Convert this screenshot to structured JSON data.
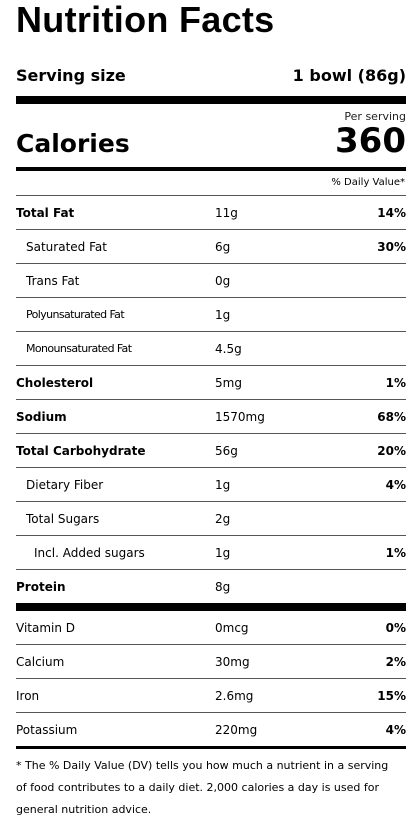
{
  "title": "Nutrition Facts",
  "serving": {
    "label": "Serving size",
    "value": "1 bowl (86g)"
  },
  "calories": {
    "per_serving": "Per serving",
    "label": "Calories",
    "value": "360"
  },
  "dv_header": "% Daily Value*",
  "nutrients": [
    {
      "name": "Total Fat",
      "amount": "11g",
      "dv": "14%"
    },
    {
      "name": "Saturated Fat",
      "amount": "6g",
      "dv": "30%"
    },
    {
      "name": "Trans Fat",
      "amount": "0g",
      "dv": ""
    },
    {
      "name": "Polyunsaturated Fat",
      "amount": "1g",
      "dv": ""
    },
    {
      "name": "Monounsaturated Fat",
      "amount": "4.5g",
      "dv": ""
    },
    {
      "name": "Cholesterol",
      "amount": "5mg",
      "dv": "1%"
    },
    {
      "name": "Sodium",
      "amount": "1570mg",
      "dv": "68%"
    },
    {
      "name": "Total Carbohydrate",
      "amount": "56g",
      "dv": "20%"
    },
    {
      "name": "Dietary Fiber",
      "amount": "1g",
      "dv": "4%"
    },
    {
      "name": "Total Sugars",
      "amount": "2g",
      "dv": ""
    },
    {
      "name": "Incl. Added sugars",
      "amount": "1g",
      "dv": "1%"
    },
    {
      "name": "Protein",
      "amount": "8g",
      "dv": ""
    }
  ],
  "vitamins": [
    {
      "name": "Vitamin D",
      "amount": "0mcg",
      "dv": "0%"
    },
    {
      "name": "Calcium",
      "amount": "30mg",
      "dv": "2%"
    },
    {
      "name": "Iron",
      "amount": "2.6mg",
      "dv": "15%"
    },
    {
      "name": "Potassium",
      "amount": "220mg",
      "dv": "4%"
    }
  ],
  "footnote": "* The % Daily Value (DV) tells you how much a nutrient in a serving of food contributes to a daily diet. 2,000 calories a day is used for general nutrition advice."
}
